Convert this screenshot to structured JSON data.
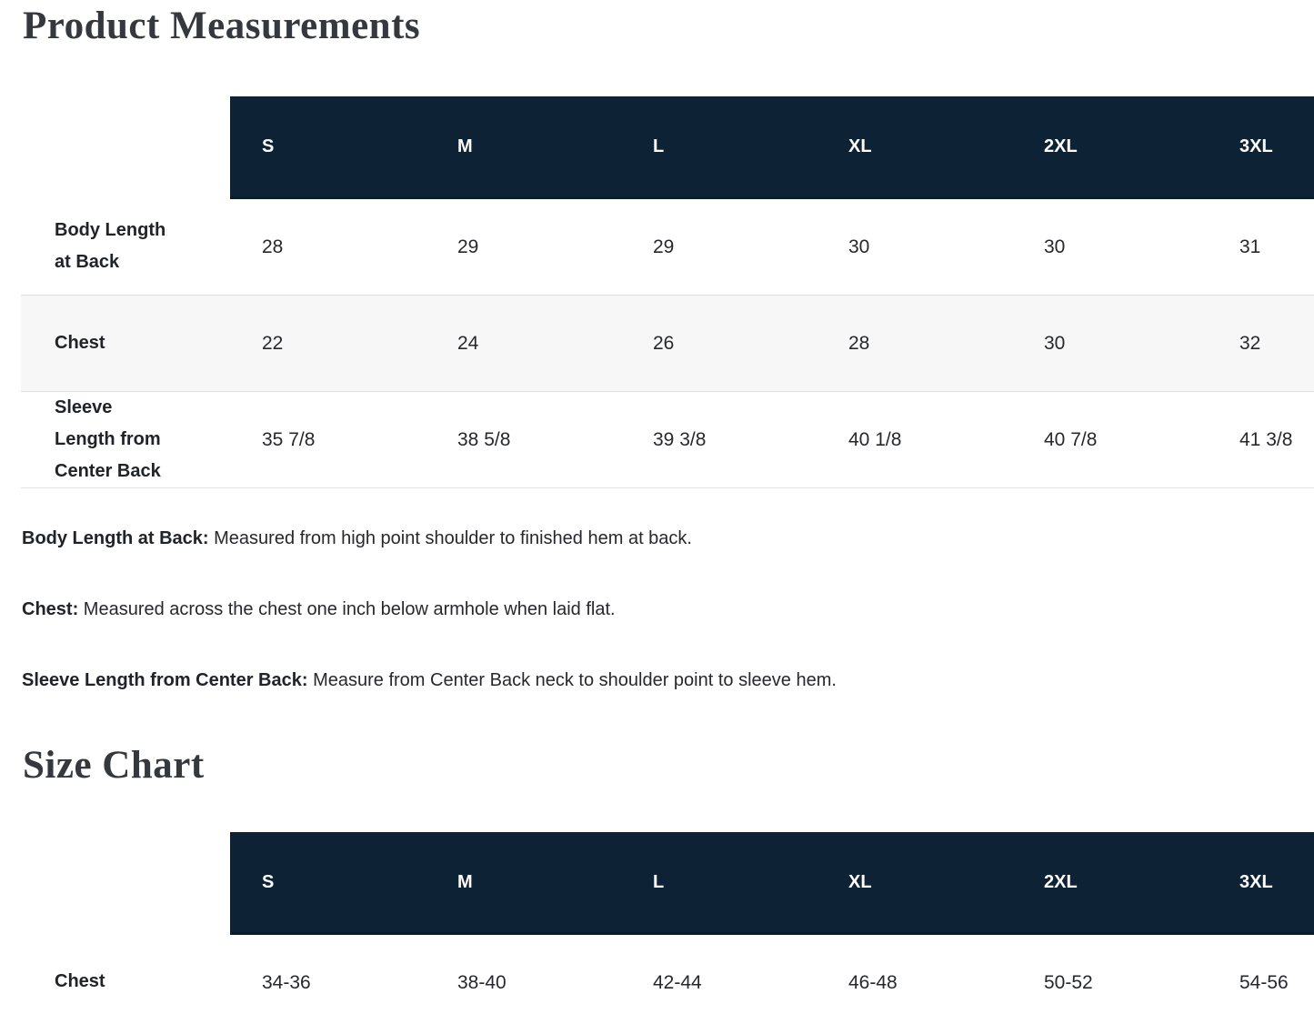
{
  "page": {
    "measurements_title": "Product Measurements",
    "size_chart_title": "Size Chart"
  },
  "colors": {
    "header_bg": "#0d2234",
    "header_text": "#ffffff",
    "alt_row_bg": "#f7f7f7",
    "row_border": "#e0e0e0",
    "heading_text": "#35383c",
    "body_text": "#26282c"
  },
  "measurements_table": {
    "columns": [
      "S",
      "M",
      "L",
      "XL",
      "2XL",
      "3XL"
    ],
    "rows": [
      {
        "label": "Body Length at Back",
        "values": [
          "28",
          "29",
          "29",
          "30",
          "30",
          "31"
        ]
      },
      {
        "label": "Chest",
        "values": [
          "22",
          "24",
          "26",
          "28",
          "30",
          "32"
        ]
      },
      {
        "label": "Sleeve Length from Center Back",
        "values": [
          "35 7/8",
          "38 5/8",
          "39 3/8",
          "40 1/8",
          "40 7/8",
          "41 3/8"
        ]
      }
    ]
  },
  "definitions": [
    {
      "term": "Body Length at Back:",
      "text": " Measured from high point shoulder to finished hem at back."
    },
    {
      "term": "Chest:",
      "text": " Measured across the chest one inch below armhole when laid flat."
    },
    {
      "term": "Sleeve Length from Center Back:",
      "text": " Measure from Center Back neck to shoulder point to sleeve hem."
    }
  ],
  "size_chart_table": {
    "columns": [
      "S",
      "M",
      "L",
      "XL",
      "2XL",
      "3XL"
    ],
    "rows": [
      {
        "label": "Chest",
        "values": [
          "34-36",
          "38-40",
          "42-44",
          "46-48",
          "50-52",
          "54-56"
        ]
      }
    ]
  }
}
